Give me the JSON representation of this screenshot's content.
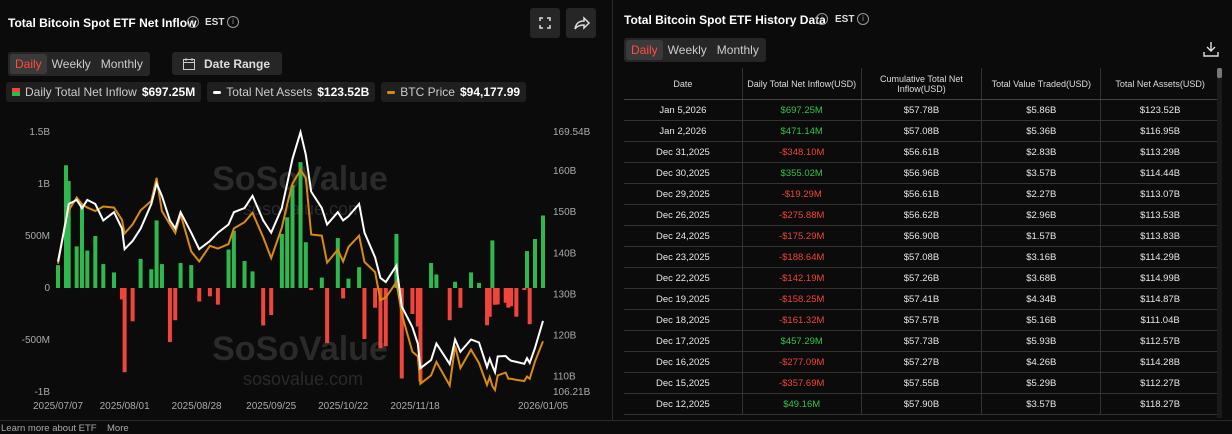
{
  "left_panel": {
    "title": "Total Bitcoin Spot ETF Net Inflow",
    "timezone": "EST",
    "tabs": [
      "Daily",
      "Weekly",
      "Monthly"
    ],
    "date_range": "Date Range"
  },
  "watermark": [
    "SoSoValue",
    "sosovalue.com"
  ],
  "chart_data": {
    "type": "combo",
    "x": [
      "2025/07/07",
      "2025/07/10",
      "2025/07/11",
      "2025/07/14",
      "2025/07/16",
      "2025/07/18",
      "2025/07/21",
      "2025/07/24",
      "2025/07/28",
      "2025/07/31",
      "2025/08/01",
      "2025/08/04",
      "2025/08/07",
      "2025/08/11",
      "2025/08/13",
      "2025/08/15",
      "2025/08/18",
      "2025/08/20",
      "2025/08/22",
      "2025/08/26",
      "2025/08/29",
      "2025/09/02",
      "2025/09/05",
      "2025/09/09",
      "2025/09/11",
      "2025/09/15",
      "2025/09/18",
      "2025/09/22",
      "2025/09/25",
      "2025/09/29",
      "2025/10/01",
      "2025/10/03",
      "2025/10/06",
      "2025/10/08",
      "2025/10/10",
      "2025/10/14",
      "2025/10/16",
      "2025/10/20",
      "2025/10/22",
      "2025/10/24",
      "2025/10/28",
      "2025/10/30",
      "2025/11/03",
      "2025/11/05",
      "2025/11/07",
      "2025/11/11",
      "2025/11/13",
      "2025/11/17",
      "2025/11/19",
      "2025/11/20",
      "2025/11/24",
      "2025/11/26",
      "2025/12/01",
      "2025/12/03",
      "2025/12/05",
      "2025/12/09",
      "2025/12/12",
      "2025/12/15",
      "2025/12/16",
      "2025/12/17",
      "2025/12/18",
      "2025/12/19",
      "2025/12/22",
      "2025/12/23",
      "2025/12/24",
      "2025/12/26",
      "2025/12/29",
      "2025/12/30",
      "2025/12/31",
      "2026/01/02",
      "2026/01/05"
    ],
    "series": [
      {
        "name": "Daily Total Net Inflow",
        "type": "bar",
        "positive_color": "#2fb84e",
        "negative_color": "#f0453a",
        "legend_value": "$697.25M",
        "values": [
          0.22,
          1.18,
          1.03,
          0.4,
          0.8,
          0.36,
          0.5,
          0.23,
          0.15,
          -0.11,
          -0.81,
          -0.32,
          0.28,
          0.18,
          0.65,
          0.23,
          -0.52,
          -0.31,
          0.24,
          0.22,
          -0.13,
          -0.08,
          -0.16,
          0.37,
          0.55,
          0.26,
          0.16,
          -0.36,
          -0.26,
          0.52,
          0.68,
          0.99,
          1.21,
          0.44,
          -0.02,
          0.1,
          -0.53,
          0.48,
          -0.1,
          0.09,
          0.2,
          -0.49,
          -0.19,
          -0.58,
          -0.56,
          0.52,
          -0.87,
          -0.25,
          -0.37,
          -0.9,
          0.24,
          0.13,
          -0.31,
          0.06,
          -0.19,
          0.15,
          0.04916,
          -0.35769,
          -0.27709,
          0.45729,
          -0.16132,
          -0.15825,
          -0.14219,
          -0.18864,
          -0.17529,
          -0.27588,
          -0.01929,
          0.35502,
          -0.3481,
          0.47114,
          0.69725
        ]
      },
      {
        "name": "Total Net Assets",
        "type": "line",
        "axis": "y2",
        "color": "#ffffff",
        "legend_value": "$123.52B",
        "values": [
          138,
          148,
          152,
          153,
          151,
          153,
          152,
          148,
          150,
          146,
          141,
          143,
          146,
          152,
          157,
          154,
          148,
          146,
          150,
          145,
          141,
          143,
          145,
          147,
          150,
          151,
          154,
          148,
          145,
          151,
          157,
          163,
          169.5,
          164,
          155,
          151,
          147,
          150,
          148,
          149,
          152,
          145,
          139,
          134,
          133,
          137,
          127,
          122,
          118,
          112,
          114,
          118,
          113,
          119,
          116,
          119,
          118.27,
          112.27,
          114.28,
          112.57,
          111.04,
          114.87,
          114.99,
          114.29,
          113.83,
          113.53,
          113.07,
          114.44,
          113.29,
          116.95,
          123.52
        ]
      },
      {
        "name": "BTC Price",
        "type": "line",
        "color": "#d98b10",
        "legend_value": "$94,177.99",
        "values": [
          108000,
          116000,
          117500,
          119800,
          118600,
          118000,
          117400,
          118200,
          118000,
          115800,
          113400,
          115000,
          117500,
          119200,
          123300,
          117400,
          115000,
          113500,
          116800,
          110200,
          108400,
          111200,
          110700,
          111500,
          114300,
          115400,
          117100,
          112700,
          109000,
          114400,
          118600,
          122300,
          124700,
          123300,
          113200,
          113000,
          108200,
          110500,
          108400,
          111000,
          113000,
          108300,
          106500,
          101500,
          102000,
          104700,
          99000,
          92300,
          91500,
          86600,
          88100,
          90500,
          86300,
          93400,
          89400,
          92700,
          90300,
          86400,
          87800,
          86200,
          85500,
          88100,
          88600,
          87500,
          87500,
          87300,
          87100,
          87900,
          87500,
          90600,
          94177.99
        ]
      }
    ],
    "ylim": [
      -1,
      1.5
    ],
    "yticks": [
      {
        "value": 1.5,
        "label": "1.5B"
      },
      {
        "value": 1,
        "label": "1B"
      },
      {
        "value": 0.5,
        "label": "500M"
      },
      0,
      {
        "value": -0.5,
        "label": "-500M"
      },
      {
        "value": -1,
        "label": "-1B"
      }
    ],
    "y2lim": [
      106.21,
      169.54
    ],
    "y2ticks": [
      {
        "value": 169.54,
        "label": "169.54B"
      },
      {
        "value": 160,
        "label": "160B"
      },
      {
        "value": 150,
        "label": "150B"
      },
      {
        "value": 140,
        "label": "140B"
      },
      {
        "value": 130,
        "label": "130B"
      },
      {
        "value": 120,
        "label": "120B"
      },
      {
        "value": 110,
        "label": "110B"
      },
      {
        "value": 106.21,
        "label": "106.21B"
      }
    ],
    "xticks": [
      "2025/07/07",
      "2025/08/01",
      "2025/08/28",
      "2025/09/25",
      "2025/10/22",
      "2025/11/18",
      "2026/01/05"
    ],
    "grid": false
  },
  "right_panel": {
    "title": "Total Bitcoin Spot ETF History Data",
    "timezone": "EST",
    "tabs": [
      "Daily",
      "Weekly",
      "Monthly"
    ],
    "table": {
      "columns": [
        "Date",
        "Daily Total Net Inflow(USD)",
        "Cumulative Total Net Inflow(USD)",
        "Total Value Traded(USD)",
        "Total Net Assets(USD)"
      ],
      "rows": [
        [
          "Jan 5,2026",
          "$697.25M",
          "$57.78B",
          "$5.86B",
          "$123.52B"
        ],
        [
          "Jan 2,2026",
          "$471.14M",
          "$57.08B",
          "$5.36B",
          "$116.95B"
        ],
        [
          "Dec 31,2025",
          "-$348.10M",
          "$56.61B",
          "$2.83B",
          "$113.29B"
        ],
        [
          "Dec 30,2025",
          "$355.02M",
          "$56.96B",
          "$3.57B",
          "$114.44B"
        ],
        [
          "Dec 29,2025",
          "-$19.29M",
          "$56.61B",
          "$2.27B",
          "$113.07B"
        ],
        [
          "Dec 26,2025",
          "-$275.88M",
          "$56.62B",
          "$2.96B",
          "$113.53B"
        ],
        [
          "Dec 24,2025",
          "-$175.29M",
          "$56.90B",
          "$1.57B",
          "$113.83B"
        ],
        [
          "Dec 23,2025",
          "-$188.64M",
          "$57.08B",
          "$3.16B",
          "$114.29B"
        ],
        [
          "Dec 22,2025",
          "-$142.19M",
          "$57.26B",
          "$3.68B",
          "$114.99B"
        ],
        [
          "Dec 19,2025",
          "-$158.25M",
          "$57.41B",
          "$4.34B",
          "$114.87B"
        ],
        [
          "Dec 18,2025",
          "-$161.32M",
          "$57.57B",
          "$5.16B",
          "$111.04B"
        ],
        [
          "Dec 17,2025",
          "$457.29M",
          "$57.73B",
          "$5.93B",
          "$112.57B"
        ],
        [
          "Dec 16,2025",
          "-$277.09M",
          "$57.27B",
          "$4.26B",
          "$114.28B"
        ],
        [
          "Dec 15,2025",
          "-$357.69M",
          "$57.55B",
          "$5.29B",
          "$112.27B"
        ],
        [
          "Dec 12,2025",
          "$49.16M",
          "$57.90B",
          "$3.57B",
          "$118.27B"
        ]
      ]
    }
  },
  "footer": [
    "Learn more about ETF",
    "More"
  ]
}
